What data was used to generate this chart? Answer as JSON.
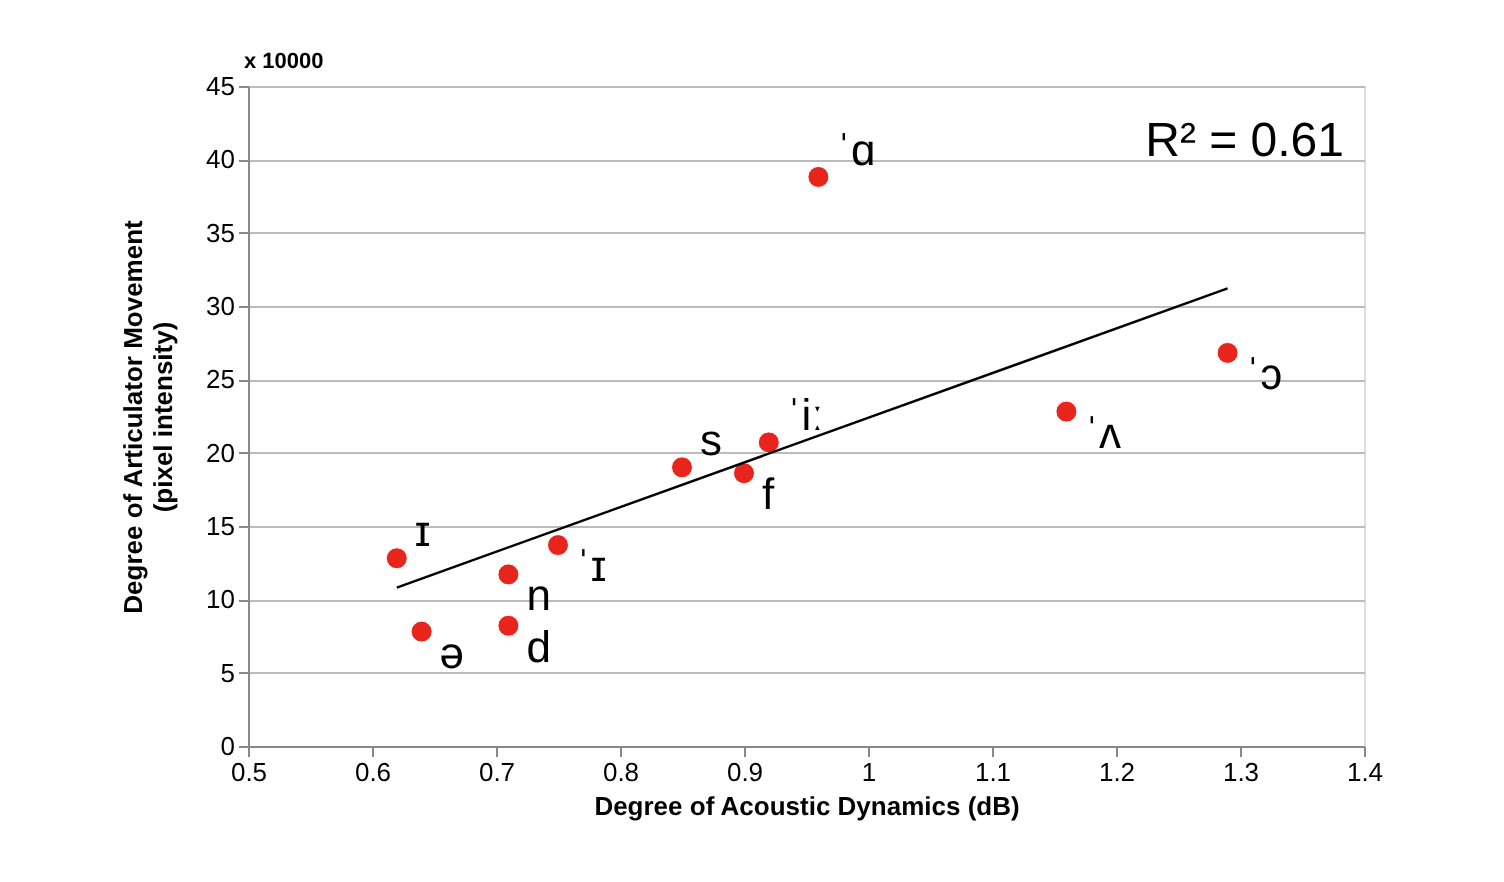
{
  "chart_data": {
    "type": "scatter",
    "xlabel": "Degree of Acoustic Dynamics (dB)",
    "ylabel": "Degree of Articulator Movement\n(pixel intensity)",
    "x": [
      0.62,
      0.64,
      0.71,
      0.71,
      0.75,
      0.85,
      0.9,
      0.92,
      0.96,
      1.16,
      1.29
    ],
    "series": [
      {
        "color": "#e8251c",
        "marker": "circle",
        "values": [
          12.8,
          7.8,
          11.7,
          8.2,
          13.7,
          19.0,
          18.6,
          20.7,
          38.8,
          22.8,
          26.8
        ]
      },
      {
        "type": "line",
        "color": "#000000",
        "x": [
          0.62,
          1.29
        ],
        "values": [
          10.8,
          31.2
        ]
      }
    ],
    "xlim": [
      0.5,
      1.4
    ],
    "xticks": [
      0.5,
      0.6,
      0.7,
      0.8,
      0.9,
      1,
      1.1,
      1.2,
      1.3,
      1.4
    ],
    "ylim": [
      0,
      45
    ],
    "yticks": [
      0,
      5,
      10,
      15,
      20,
      25,
      30,
      35,
      40,
      45
    ],
    "grid": "y",
    "annotations": [
      "x 10000",
      "R² = 0.61",
      {
        "text": "ɪ",
        "x": 0.62,
        "y": 12.8
      },
      {
        "text": "ə",
        "x": 0.64,
        "y": 7.8
      },
      {
        "text": "n",
        "x": 0.71,
        "y": 11.7
      },
      {
        "text": "d",
        "x": 0.71,
        "y": 8.2
      },
      {
        "text": "ˈɪ",
        "x": 0.75,
        "y": 13.7
      },
      {
        "text": "s",
        "x": 0.85,
        "y": 19.0
      },
      {
        "text": "f",
        "x": 0.9,
        "y": 18.6
      },
      {
        "text": "ˈiː",
        "x": 0.92,
        "y": 20.7
      },
      {
        "text": "ˈɑ",
        "x": 0.96,
        "y": 38.8
      },
      {
        "text": "ˈʌ",
        "x": 1.16,
        "y": 22.8
      },
      {
        "text": "ˈɔ",
        "x": 1.29,
        "y": 26.8
      }
    ]
  }
}
